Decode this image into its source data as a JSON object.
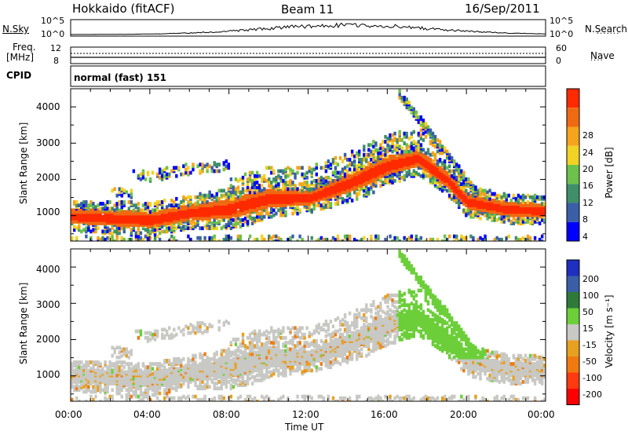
{
  "header": {
    "title": "Hokkaido (fitACF)",
    "beam": "Beam 11",
    "date": "16/Sep/2011"
  },
  "top_panel": {
    "nsky_label": "N.Sky",
    "nsearch_label": "N.Search",
    "left_ticks": [
      "10^5",
      "10^0"
    ],
    "right_ticks": [
      "10^5",
      "10^0"
    ],
    "freq_label_1": "Freq.",
    "freq_label_2": "[MHz]",
    "freq_ticks": [
      "12",
      "8"
    ],
    "nave_label": "Nave",
    "nave_ticks": [
      "60",
      "0"
    ],
    "cpid_label": "CPID",
    "cpid_value": "normal (fast) 151"
  },
  "colors": {
    "power": [
      "#0000ff",
      "#3a5fa8",
      "#3f8f6a",
      "#6cc24a",
      "#f2d224",
      "#f6a31e",
      "#f06a12",
      "#ff2a00"
    ],
    "velocity": [
      "#1f2fbf",
      "#3a5fa8",
      "#2f7a3a",
      "#6ccf3a",
      "#c8c8c4",
      "#e8a020",
      "#f07a10",
      "#ff3a10",
      "#ff0000"
    ]
  },
  "chart_data": [
    {
      "type": "heatmap",
      "panel": "power",
      "ylabel": "Slant Range [km]",
      "yticks": [
        "1000",
        "2000",
        "3000",
        "4000"
      ],
      "ylim": [
        300,
        4500
      ],
      "xlim": [
        0,
        24
      ],
      "colorbar_label": "Power [dB]",
      "colorbar_ticks": [
        "4",
        "8",
        "12",
        "16",
        "20",
        "24",
        "28"
      ],
      "band_center_km": [
        [
          0,
          1000
        ],
        [
          2,
          950
        ],
        [
          4,
          900
        ],
        [
          6,
          1100
        ],
        [
          8,
          1200
        ],
        [
          10,
          1500
        ],
        [
          12,
          1500
        ],
        [
          14,
          1900
        ],
        [
          16,
          2400
        ],
        [
          17.5,
          2600
        ],
        [
          19,
          2000
        ],
        [
          20,
          1400
        ],
        [
          22,
          1200
        ],
        [
          24,
          1150
        ]
      ],
      "band_halfwidth_km": [
        [
          0,
          180
        ],
        [
          3,
          200
        ],
        [
          6,
          200
        ],
        [
          9,
          260
        ],
        [
          12,
          180
        ],
        [
          15,
          250
        ],
        [
          18,
          200
        ],
        [
          21,
          180
        ],
        [
          24,
          170
        ]
      ]
    },
    {
      "type": "heatmap",
      "panel": "velocity",
      "ylabel": "Slant Range [km]",
      "yticks": [
        "1000",
        "2000",
        "3000",
        "4000"
      ],
      "ylim": [
        300,
        4500
      ],
      "xlim": [
        0,
        24
      ],
      "xlabel": "Time UT",
      "xticks": [
        "00:00",
        "04:00",
        "08:00",
        "12:00",
        "16:00",
        "20:00",
        "00:00"
      ],
      "colorbar_label": "Velocity [m s⁻¹]",
      "colorbar_ticks": [
        "200",
        "100",
        "50",
        "15",
        "-15",
        "-50",
        "-100",
        "-200"
      ]
    }
  ]
}
